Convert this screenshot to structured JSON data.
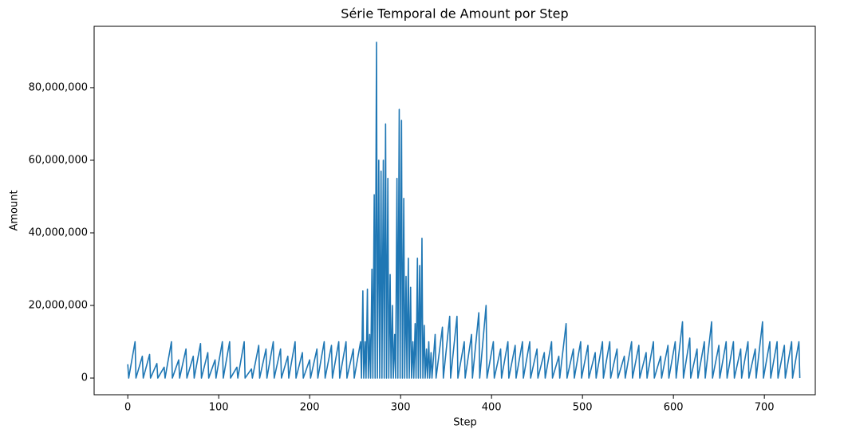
{
  "chart_data": {
    "type": "line",
    "title": "Série Temporal de Amount por Step",
    "x_label": "Step",
    "y_label": "Amount",
    "color": "#1f77b4",
    "xlim": [
      -37,
      756
    ],
    "xticks": [
      0,
      100,
      200,
      300,
      400,
      500,
      600,
      700
    ],
    "ylim": [
      -4600000,
      96900000
    ],
    "yticks": [
      0,
      {
        "value": 20000000,
        "label": "20,000,000"
      },
      {
        "value": 40000000,
        "label": "40,000,000"
      },
      {
        "value": 60000000,
        "label": "60,000,000"
      },
      {
        "value": 80000000,
        "label": "80,000,000"
      }
    ],
    "x": [
      0,
      1,
      8,
      9,
      16,
      17,
      24,
      25,
      32,
      33,
      40,
      41,
      48,
      49,
      56,
      57,
      64,
      65,
      72,
      73,
      80,
      81,
      88,
      89,
      96,
      97,
      104,
      105,
      112,
      113,
      120,
      121,
      128,
      129,
      136,
      137,
      144,
      145,
      152,
      153,
      160,
      161,
      168,
      169,
      176,
      177,
      184,
      185,
      192,
      193,
      200,
      201,
      208,
      209,
      216,
      217,
      224,
      225,
      232,
      233,
      240,
      241,
      248,
      249,
      256,
      257,
      258.5,
      259.5,
      261,
      262,
      263.5,
      264.5,
      266,
      267,
      268.5,
      269.5,
      271,
      272,
      273.5,
      274.5,
      276,
      277,
      278.5,
      279.5,
      281,
      282,
      283.5,
      284.5,
      286,
      287,
      288.5,
      289.5,
      291,
      292,
      293.5,
      294.5,
      296,
      297,
      298.5,
      299.5,
      301,
      302,
      303.5,
      304.5,
      306,
      307,
      308.5,
      309.5,
      311,
      312,
      313.5,
      314.5,
      316,
      317,
      318.5,
      319.5,
      321,
      322,
      323.5,
      324.5,
      326,
      327,
      328.5,
      329.5,
      331,
      332,
      333.5,
      334.5,
      338,
      339,
      346,
      347,
      354,
      355,
      362,
      363,
      370,
      371,
      378,
      379,
      386,
      387,
      394,
      395,
      402,
      403,
      410,
      411,
      418,
      419,
      426,
      427,
      434,
      435,
      442,
      443,
      450,
      451,
      458,
      459,
      466,
      467,
      474,
      475,
      482,
      483,
      490,
      491,
      498,
      499,
      506,
      507,
      514,
      515,
      522,
      523,
      530,
      531,
      538,
      539,
      546,
      547,
      554,
      555,
      562,
      563,
      570,
      571,
      578,
      579,
      586,
      587,
      594,
      595,
      602,
      603,
      610,
      611,
      618,
      619,
      626,
      627,
      634,
      635,
      642,
      643,
      650,
      651,
      658,
      659,
      666,
      667,
      674,
      675,
      682,
      683,
      690,
      691,
      698,
      699,
      706,
      707,
      714,
      715,
      722,
      723,
      730,
      731,
      738,
      739
    ],
    "values": [
      3800000,
      0,
      10000000,
      0,
      6000000,
      0,
      6500000,
      0,
      4000000,
      0,
      3000000,
      0,
      10000000,
      0,
      5000000,
      0,
      8000000,
      0,
      6000000,
      0,
      9500000,
      0,
      7000000,
      0,
      5000000,
      0,
      10000000,
      0,
      10000000,
      0,
      3000000,
      0,
      10000000,
      0,
      2500000,
      0,
      9000000,
      0,
      8000000,
      0,
      10000000,
      0,
      8000000,
      0,
      6000000,
      0,
      10000000,
      0,
      7000000,
      0,
      5000000,
      0,
      8000000,
      0,
      10000000,
      0,
      9000000,
      0,
      10000000,
      0,
      10000000,
      0,
      8000000,
      0,
      10000000,
      0,
      24000000,
      0,
      10000000,
      0,
      24500000,
      0,
      12000000,
      0,
      30000000,
      0,
      50500000,
      0,
      92500000,
      0,
      60000000,
      0,
      57000000,
      0,
      60000000,
      0,
      70000000,
      0,
      55000000,
      0,
      28500000,
      0,
      20000000,
      0,
      12000000,
      0,
      55000000,
      0,
      74000000,
      0,
      71000000,
      0,
      49500000,
      0,
      28000000,
      0,
      33000000,
      0,
      25000000,
      0,
      10000000,
      0,
      15000000,
      0,
      33000000,
      0,
      31000000,
      0,
      38500000,
      0,
      14500000,
      0,
      8000000,
      0,
      10000000,
      0,
      7000000,
      0,
      12000000,
      0,
      14000000,
      0,
      17000000,
      0,
      17000000,
      0,
      10000000,
      0,
      12000000,
      0,
      18000000,
      0,
      20000000,
      0,
      10000000,
      0,
      8000000,
      0,
      10000000,
      0,
      9000000,
      0,
      10000000,
      0,
      10000000,
      0,
      8000000,
      0,
      7000000,
      0,
      10000000,
      0,
      6000000,
      0,
      15000000,
      0,
      8000000,
      0,
      10000000,
      0,
      9000000,
      0,
      7000000,
      0,
      10000000,
      0,
      10000000,
      0,
      8000000,
      0,
      6000000,
      0,
      10000000,
      0,
      9000000,
      0,
      7000000,
      0,
      10000000,
      0,
      6000000,
      0,
      9000000,
      0,
      10000000,
      0,
      15500000,
      0,
      11000000,
      0,
      8000000,
      0,
      10000000,
      0,
      15500000,
      0,
      9000000,
      0,
      10000000,
      0,
      10000000,
      0,
      8000000,
      0,
      10000000,
      0,
      8000000,
      0,
      15500000,
      0,
      10000000,
      0,
      10000000,
      0,
      9000000,
      0,
      10000000,
      0,
      10000000,
      0
    ]
  }
}
